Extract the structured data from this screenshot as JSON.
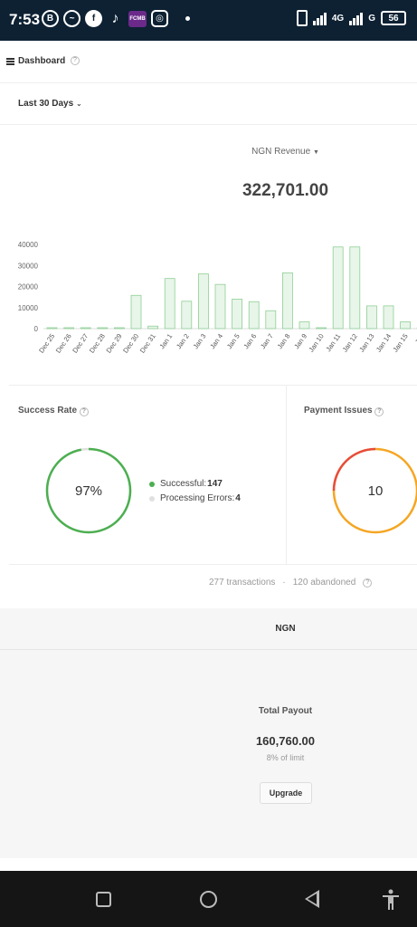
{
  "status_bar": {
    "time": "7:53",
    "network": "4G",
    "network2": "G",
    "battery": "56"
  },
  "header": {
    "title": "Dashboard"
  },
  "filter": {
    "range_label": "Last 30 Days"
  },
  "revenue": {
    "currency_select": "NGN Revenue",
    "total": "322,701.00"
  },
  "chart_data": {
    "type": "bar",
    "categories": [
      "Dec 25",
      "Dec 26",
      "Dec 27",
      "Dec 28",
      "Dec 29",
      "Dec 30",
      "Dec 31",
      "Jan 1",
      "Jan 2",
      "Jan 3",
      "Jan 4",
      "Jan 5",
      "Jan 6",
      "Jan 7",
      "Jan 8",
      "Jan 9",
      "Jan 10",
      "Jan 11",
      "Jan 12",
      "Jan 13",
      "Jan 14",
      "Jan 15",
      "Jan"
    ],
    "values": [
      0,
      0,
      0,
      0,
      0,
      15800,
      1200,
      23800,
      13000,
      26000,
      21000,
      14000,
      12800,
      8500,
      26500,
      3200,
      0,
      38800,
      38800,
      10800,
      10800,
      3200,
      0
    ],
    "yticks": [
      "0",
      "10000",
      "20000",
      "30000",
      "40000"
    ],
    "ylim": [
      0,
      40000
    ],
    "bar_color": "#e8f5e9",
    "bar_border": "#8fcf95"
  },
  "success_rate": {
    "title": "Success Rate",
    "percent": "97%",
    "fraction": 0.97,
    "legend": [
      {
        "label": "Successful: ",
        "value": "147",
        "color": "#4caf50"
      },
      {
        "label": "Processing Errors: ",
        "value": "4",
        "color": "#e0e0e0"
      }
    ]
  },
  "payment_issues": {
    "title": "Payment Issues",
    "count": "10"
  },
  "summary": {
    "transactions": "277 transactions",
    "separator": "·",
    "abandoned": "120 abandoned"
  },
  "payout": {
    "currency": "NGN",
    "label": "Total Payout",
    "value": "160,760.00",
    "limit": "8% of limit",
    "upgrade_label": "Upgrade"
  },
  "icons": {
    "menu": "menu-icon",
    "help": "help-icon",
    "chevron": "chevron-down-icon"
  },
  "colors": {
    "success": "#4caf50",
    "error": "#e74c3c",
    "warning": "#f5a623"
  }
}
